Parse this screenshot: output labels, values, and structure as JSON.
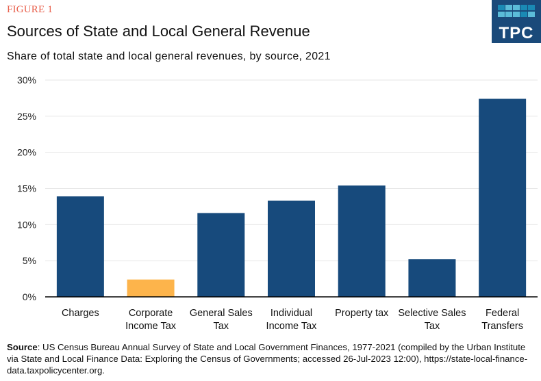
{
  "header": {
    "figure_label": "FIGURE 1",
    "title": "Sources of State and Local General Revenue",
    "subtitle": "Share of total state and local general revenues,  by source, 2021"
  },
  "logo": {
    "text": "TPC",
    "background": "#1a4a7a",
    "cell_colors": [
      [
        "#1a8ab4",
        "#5bbcd8",
        "#5bbcd8",
        "#1a8ab4",
        "#1a8ab4"
      ],
      [
        "#5bbcd8",
        "#5bbcd8",
        "#5bbcd8",
        "#1a8ab4",
        "#5bbcd8"
      ]
    ]
  },
  "chart_data": {
    "type": "bar",
    "title": "Sources of State and Local General Revenue",
    "subtitle": "Share of total state and local general revenues, by source, 2021",
    "xlabel": "",
    "ylabel": "",
    "ylim": [
      0,
      30
    ],
    "yticks": [
      0,
      5,
      10,
      15,
      20,
      25,
      30
    ],
    "ytick_labels": [
      "0%",
      "5%",
      "10%",
      "15%",
      "20%",
      "25%",
      "30%"
    ],
    "grid": true,
    "legend": "none",
    "categories": [
      [
        "Charges"
      ],
      [
        "Corporate",
        "Income Tax"
      ],
      [
        "General Sales",
        "Tax"
      ],
      [
        "Individual",
        "Income Tax"
      ],
      [
        "Property tax"
      ],
      [
        "Selective Sales",
        "Tax"
      ],
      [
        "Federal",
        "Transfers"
      ]
    ],
    "values": [
      13.9,
      2.4,
      11.6,
      13.3,
      15.4,
      5.2,
      27.4
    ],
    "colors": [
      "#174a7c",
      "#fdb44b",
      "#174a7c",
      "#174a7c",
      "#174a7c",
      "#174a7c",
      "#174a7c"
    ]
  },
  "source": {
    "label": "Source",
    "text": ": US Census Bureau Annual Survey of State and Local Government Finances, 1977-2021 (compiled by the Urban Institute via State and Local Finance Data: Exploring the Census of Governments; accessed 26-Jul-2023 12:00), https://state-local-finance-data.taxpolicycenter.org."
  }
}
